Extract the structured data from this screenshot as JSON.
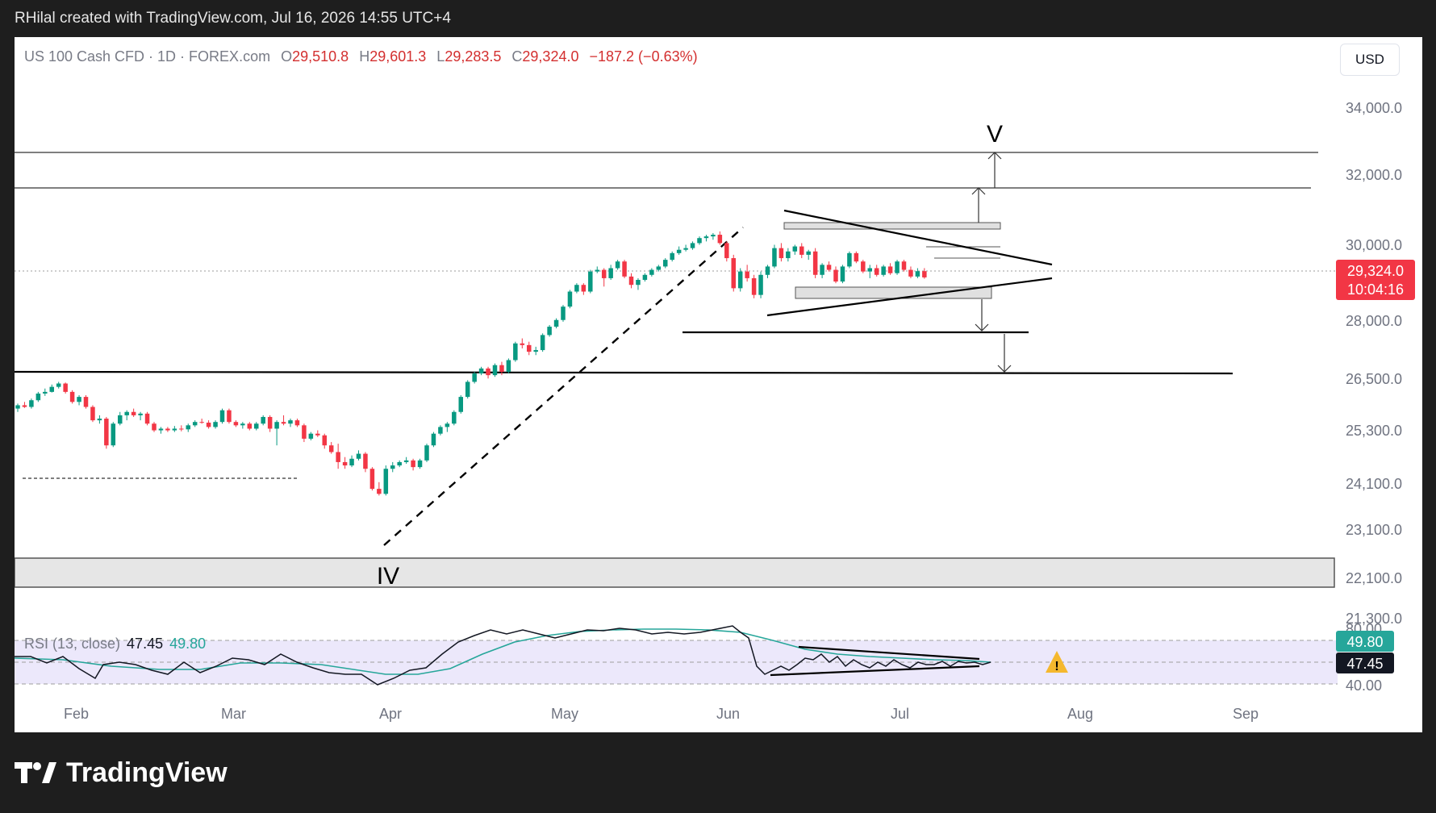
{
  "top_bar": {
    "caption": "RHilal created with TradingView.com, Jul 16, 2026 14:55 UTC+4"
  },
  "footer": {
    "brand": "TradingView"
  },
  "symbol": {
    "name": "US 100 Cash CFD · 1D · FOREX.com",
    "open_label": "O",
    "open": "29,510.8",
    "high_label": "H",
    "high": "29,601.3",
    "low_label": "L",
    "low": "29,283.5",
    "close_label": "C",
    "close": "29,324.0",
    "change": "−187.2 (−0.63%)"
  },
  "currency_button": "USD",
  "price_tag": {
    "price": "29,324.0",
    "countdown": "10:04:16"
  },
  "rsi": {
    "label": "RSI (13, close)",
    "value": "47.45",
    "ma_value": "49.80"
  },
  "wave_labels": {
    "start": "IV",
    "end": "V"
  },
  "colors": {
    "up": "#089981",
    "down": "#f23645",
    "rsi_line": "#131722",
    "rsi_ma": "#26a69a",
    "rsi_band": "#ece8fb",
    "zone_fill": "#e6e6e6",
    "price_tag": "#f23645",
    "warning": "#f5b82e"
  },
  "chart_data": {
    "type": "candlestick",
    "x_axis_ticks": [
      "Feb",
      "Mar",
      "Apr",
      "May",
      "Jun",
      "Jul",
      "Aug",
      "Sep"
    ],
    "y_axis_ticks": [
      "34,000.0",
      "32,000.0",
      "30,000.0",
      "28,000.0",
      "26,500.0",
      "25,300.0",
      "24,100.0",
      "23,100.0",
      "22,100.0",
      "21,300.0"
    ],
    "rsi_axis_ticks": [
      "80.00",
      "49.80",
      "47.45",
      "40.00"
    ],
    "last_close": 29324.0,
    "candles": [
      {
        "o": 25400,
        "h": 25550,
        "l": 25300,
        "c": 25500
      },
      {
        "o": 25500,
        "h": 25600,
        "l": 25420,
        "c": 25450
      },
      {
        "o": 25450,
        "h": 25700,
        "l": 25400,
        "c": 25650
      },
      {
        "o": 25650,
        "h": 25900,
        "l": 25600,
        "c": 25850
      },
      {
        "o": 25850,
        "h": 26000,
        "l": 25780,
        "c": 25900
      },
      {
        "o": 25900,
        "h": 26120,
        "l": 25880,
        "c": 26050
      },
      {
        "o": 26050,
        "h": 26200,
        "l": 26000,
        "c": 26150
      },
      {
        "o": 26150,
        "h": 26180,
        "l": 25850,
        "c": 25900
      },
      {
        "o": 25900,
        "h": 25950,
        "l": 25550,
        "c": 25600
      },
      {
        "o": 25600,
        "h": 25800,
        "l": 25500,
        "c": 25750
      },
      {
        "o": 25750,
        "h": 25800,
        "l": 25400,
        "c": 25450
      },
      {
        "o": 25450,
        "h": 25500,
        "l": 25000,
        "c": 25050
      },
      {
        "o": 25050,
        "h": 25200,
        "l": 24950,
        "c": 25100
      },
      {
        "o": 25100,
        "h": 25150,
        "l": 24200,
        "c": 24300
      },
      {
        "o": 24300,
        "h": 25000,
        "l": 24250,
        "c": 24950
      },
      {
        "o": 24950,
        "h": 25300,
        "l": 24900,
        "c": 25200
      },
      {
        "o": 25200,
        "h": 25350,
        "l": 25050,
        "c": 25300
      },
      {
        "o": 25300,
        "h": 25400,
        "l": 25150,
        "c": 25200
      },
      {
        "o": 25200,
        "h": 25300,
        "l": 25050,
        "c": 25250
      },
      {
        "o": 25250,
        "h": 25300,
        "l": 24900,
        "c": 24950
      },
      {
        "o": 24950,
        "h": 25000,
        "l": 24700,
        "c": 24750
      },
      {
        "o": 24750,
        "h": 24850,
        "l": 24650,
        "c": 24800
      },
      {
        "o": 24800,
        "h": 24850,
        "l": 24700,
        "c": 24750
      },
      {
        "o": 24750,
        "h": 24880,
        "l": 24700,
        "c": 24800
      },
      {
        "o": 24800,
        "h": 24900,
        "l": 24720,
        "c": 24780
      },
      {
        "o": 24780,
        "h": 24950,
        "l": 24700,
        "c": 24900
      },
      {
        "o": 24900,
        "h": 25050,
        "l": 24850,
        "c": 25000
      },
      {
        "o": 25000,
        "h": 25100,
        "l": 24950,
        "c": 24980
      },
      {
        "o": 24980,
        "h": 25050,
        "l": 24800,
        "c": 24850
      },
      {
        "o": 24850,
        "h": 25050,
        "l": 24800,
        "c": 25000
      },
      {
        "o": 25000,
        "h": 25400,
        "l": 24950,
        "c": 25350
      },
      {
        "o": 25350,
        "h": 25400,
        "l": 24950,
        "c": 25000
      },
      {
        "o": 25000,
        "h": 25050,
        "l": 24850,
        "c": 24900
      },
      {
        "o": 24900,
        "h": 25000,
        "l": 24800,
        "c": 24950
      },
      {
        "o": 24950,
        "h": 25000,
        "l": 24750,
        "c": 24800
      },
      {
        "o": 24800,
        "h": 25000,
        "l": 24750,
        "c": 24950
      },
      {
        "o": 24950,
        "h": 25200,
        "l": 24900,
        "c": 25150
      },
      {
        "o": 25150,
        "h": 25200,
        "l": 24700,
        "c": 24800
      },
      {
        "o": 24800,
        "h": 25050,
        "l": 24300,
        "c": 25000
      },
      {
        "o": 25000,
        "h": 25200,
        "l": 24900,
        "c": 24950
      },
      {
        "o": 24950,
        "h": 25100,
        "l": 24850,
        "c": 25050
      },
      {
        "o": 25050,
        "h": 25100,
        "l": 24850,
        "c": 24900
      },
      {
        "o": 24900,
        "h": 24950,
        "l": 24400,
        "c": 24500
      },
      {
        "o": 24500,
        "h": 24700,
        "l": 24450,
        "c": 24650
      },
      {
        "o": 24650,
        "h": 24750,
        "l": 24550,
        "c": 24600
      },
      {
        "o": 24600,
        "h": 24650,
        "l": 24200,
        "c": 24300
      },
      {
        "o": 24300,
        "h": 24400,
        "l": 24050,
        "c": 24100
      },
      {
        "o": 24100,
        "h": 24350,
        "l": 23600,
        "c": 23800
      },
      {
        "o": 23800,
        "h": 23950,
        "l": 23600,
        "c": 23700
      },
      {
        "o": 23700,
        "h": 24000,
        "l": 23650,
        "c": 23900
      },
      {
        "o": 23900,
        "h": 24150,
        "l": 23850,
        "c": 24050
      },
      {
        "o": 24050,
        "h": 24100,
        "l": 23500,
        "c": 23600
      },
      {
        "o": 23600,
        "h": 23650,
        "l": 22950,
        "c": 23000
      },
      {
        "o": 23000,
        "h": 23200,
        "l": 22800,
        "c": 22850
      },
      {
        "o": 22850,
        "h": 23700,
        "l": 22800,
        "c": 23600
      },
      {
        "o": 23600,
        "h": 23800,
        "l": 23500,
        "c": 23700
      },
      {
        "o": 23700,
        "h": 23850,
        "l": 23650,
        "c": 23800
      },
      {
        "o": 23800,
        "h": 23950,
        "l": 23750,
        "c": 23850
      },
      {
        "o": 23850,
        "h": 23900,
        "l": 23550,
        "c": 23650
      },
      {
        "o": 23650,
        "h": 23900,
        "l": 23600,
        "c": 23850
      },
      {
        "o": 23850,
        "h": 24350,
        "l": 23800,
        "c": 24300
      },
      {
        "o": 24300,
        "h": 24700,
        "l": 24250,
        "c": 24650
      },
      {
        "o": 24650,
        "h": 24900,
        "l": 24600,
        "c": 24850
      },
      {
        "o": 24850,
        "h": 25000,
        "l": 24700,
        "c": 24950
      },
      {
        "o": 24950,
        "h": 25350,
        "l": 24900,
        "c": 25300
      },
      {
        "o": 25300,
        "h": 25800,
        "l": 25250,
        "c": 25750
      },
      {
        "o": 25750,
        "h": 26250,
        "l": 25700,
        "c": 26200
      },
      {
        "o": 26200,
        "h": 26500,
        "l": 26150,
        "c": 26450
      },
      {
        "o": 26450,
        "h": 26650,
        "l": 26400,
        "c": 26600
      },
      {
        "o": 26600,
        "h": 26650,
        "l": 26300,
        "c": 26400
      },
      {
        "o": 26400,
        "h": 26750,
        "l": 26350,
        "c": 26700
      },
      {
        "o": 26700,
        "h": 26800,
        "l": 26400,
        "c": 26500
      },
      {
        "o": 26500,
        "h": 26900,
        "l": 26450,
        "c": 26850
      },
      {
        "o": 26850,
        "h": 27400,
        "l": 26800,
        "c": 27350
      },
      {
        "o": 27350,
        "h": 27500,
        "l": 27200,
        "c": 27300
      },
      {
        "o": 27300,
        "h": 27400,
        "l": 27000,
        "c": 27100
      },
      {
        "o": 27100,
        "h": 27250,
        "l": 27000,
        "c": 27150
      },
      {
        "o": 27150,
        "h": 27650,
        "l": 27100,
        "c": 27600
      },
      {
        "o": 27600,
        "h": 27900,
        "l": 27550,
        "c": 27850
      },
      {
        "o": 27850,
        "h": 28100,
        "l": 27800,
        "c": 28050
      },
      {
        "o": 28050,
        "h": 28500,
        "l": 28000,
        "c": 28450
      },
      {
        "o": 28450,
        "h": 28950,
        "l": 28400,
        "c": 28900
      },
      {
        "o": 28900,
        "h": 29150,
        "l": 28850,
        "c": 29100
      },
      {
        "o": 29100,
        "h": 29150,
        "l": 28800,
        "c": 28900
      },
      {
        "o": 28900,
        "h": 29550,
        "l": 28850,
        "c": 29500
      },
      {
        "o": 29500,
        "h": 29650,
        "l": 29450,
        "c": 29550
      },
      {
        "o": 29550,
        "h": 29600,
        "l": 29050,
        "c": 29300
      },
      {
        "o": 29300,
        "h": 29700,
        "l": 29250,
        "c": 29600
      },
      {
        "o": 29600,
        "h": 29850,
        "l": 29550,
        "c": 29800
      },
      {
        "o": 29800,
        "h": 29850,
        "l": 29300,
        "c": 29350
      },
      {
        "o": 29350,
        "h": 29450,
        "l": 29000,
        "c": 29100
      },
      {
        "o": 29100,
        "h": 29300,
        "l": 28950,
        "c": 29250
      },
      {
        "o": 29250,
        "h": 29450,
        "l": 29200,
        "c": 29400
      },
      {
        "o": 29400,
        "h": 29600,
        "l": 29350,
        "c": 29550
      },
      {
        "o": 29550,
        "h": 29700,
        "l": 29500,
        "c": 29650
      },
      {
        "o": 29650,
        "h": 29900,
        "l": 29600,
        "c": 29850
      },
      {
        "o": 29850,
        "h": 30100,
        "l": 29800,
        "c": 30050
      },
      {
        "o": 30050,
        "h": 30250,
        "l": 30000,
        "c": 30150
      },
      {
        "o": 30150,
        "h": 30300,
        "l": 30100,
        "c": 30200
      },
      {
        "o": 30200,
        "h": 30400,
        "l": 30150,
        "c": 30350
      },
      {
        "o": 30350,
        "h": 30550,
        "l": 30300,
        "c": 30500
      },
      {
        "o": 30500,
        "h": 30600,
        "l": 30400,
        "c": 30550
      },
      {
        "o": 30550,
        "h": 30650,
        "l": 30450,
        "c": 30600
      },
      {
        "o": 30600,
        "h": 30700,
        "l": 30300,
        "c": 30350
      },
      {
        "o": 30350,
        "h": 30400,
        "l": 29800,
        "c": 29900
      },
      {
        "o": 29900,
        "h": 30000,
        "l": 28900,
        "c": 29000
      },
      {
        "o": 29000,
        "h": 29600,
        "l": 28900,
        "c": 29500
      },
      {
        "o": 29500,
        "h": 29700,
        "l": 29200,
        "c": 29300
      },
      {
        "o": 29300,
        "h": 29400,
        "l": 28700,
        "c": 28800
      },
      {
        "o": 28800,
        "h": 29500,
        "l": 28700,
        "c": 29400
      },
      {
        "o": 29400,
        "h": 29700,
        "l": 29300,
        "c": 29650
      },
      {
        "o": 29650,
        "h": 30300,
        "l": 29600,
        "c": 30200
      },
      {
        "o": 30200,
        "h": 30350,
        "l": 29800,
        "c": 29900
      },
      {
        "o": 29900,
        "h": 30200,
        "l": 29800,
        "c": 30100
      },
      {
        "o": 30100,
        "h": 30300,
        "l": 30000,
        "c": 30250
      },
      {
        "o": 30250,
        "h": 30350,
        "l": 29900,
        "c": 30000
      },
      {
        "o": 30000,
        "h": 30150,
        "l": 29850,
        "c": 30100
      },
      {
        "o": 30100,
        "h": 30200,
        "l": 29300,
        "c": 29400
      },
      {
        "o": 29400,
        "h": 29750,
        "l": 29300,
        "c": 29700
      },
      {
        "o": 29700,
        "h": 29800,
        "l": 29500,
        "c": 29550
      },
      {
        "o": 29550,
        "h": 29650,
        "l": 29150,
        "c": 29200
      },
      {
        "o": 29200,
        "h": 29700,
        "l": 29150,
        "c": 29650
      },
      {
        "o": 29650,
        "h": 30100,
        "l": 29600,
        "c": 30050
      },
      {
        "o": 30050,
        "h": 30100,
        "l": 29750,
        "c": 29800
      },
      {
        "o": 29800,
        "h": 29850,
        "l": 29450,
        "c": 29500
      },
      {
        "o": 29500,
        "h": 29700,
        "l": 29300,
        "c": 29600
      },
      {
        "o": 29600,
        "h": 29700,
        "l": 29350,
        "c": 29400
      },
      {
        "o": 29400,
        "h": 29700,
        "l": 29350,
        "c": 29650
      },
      {
        "o": 29650,
        "h": 29750,
        "l": 29400,
        "c": 29450
      },
      {
        "o": 29450,
        "h": 29850,
        "l": 29400,
        "c": 29800
      },
      {
        "o": 29800,
        "h": 29850,
        "l": 29500,
        "c": 29550
      },
      {
        "o": 29550,
        "h": 29650,
        "l": 29300,
        "c": 29350
      },
      {
        "o": 29350,
        "h": 29600,
        "l": 29300,
        "c": 29510
      },
      {
        "o": 29510.8,
        "h": 29601.3,
        "l": 29283.5,
        "c": 29324.0
      }
    ],
    "annotation_price_levels": [
      32650,
      31650,
      28100,
      27200
    ],
    "shaded_zone": [
      22600,
      22850
    ]
  }
}
